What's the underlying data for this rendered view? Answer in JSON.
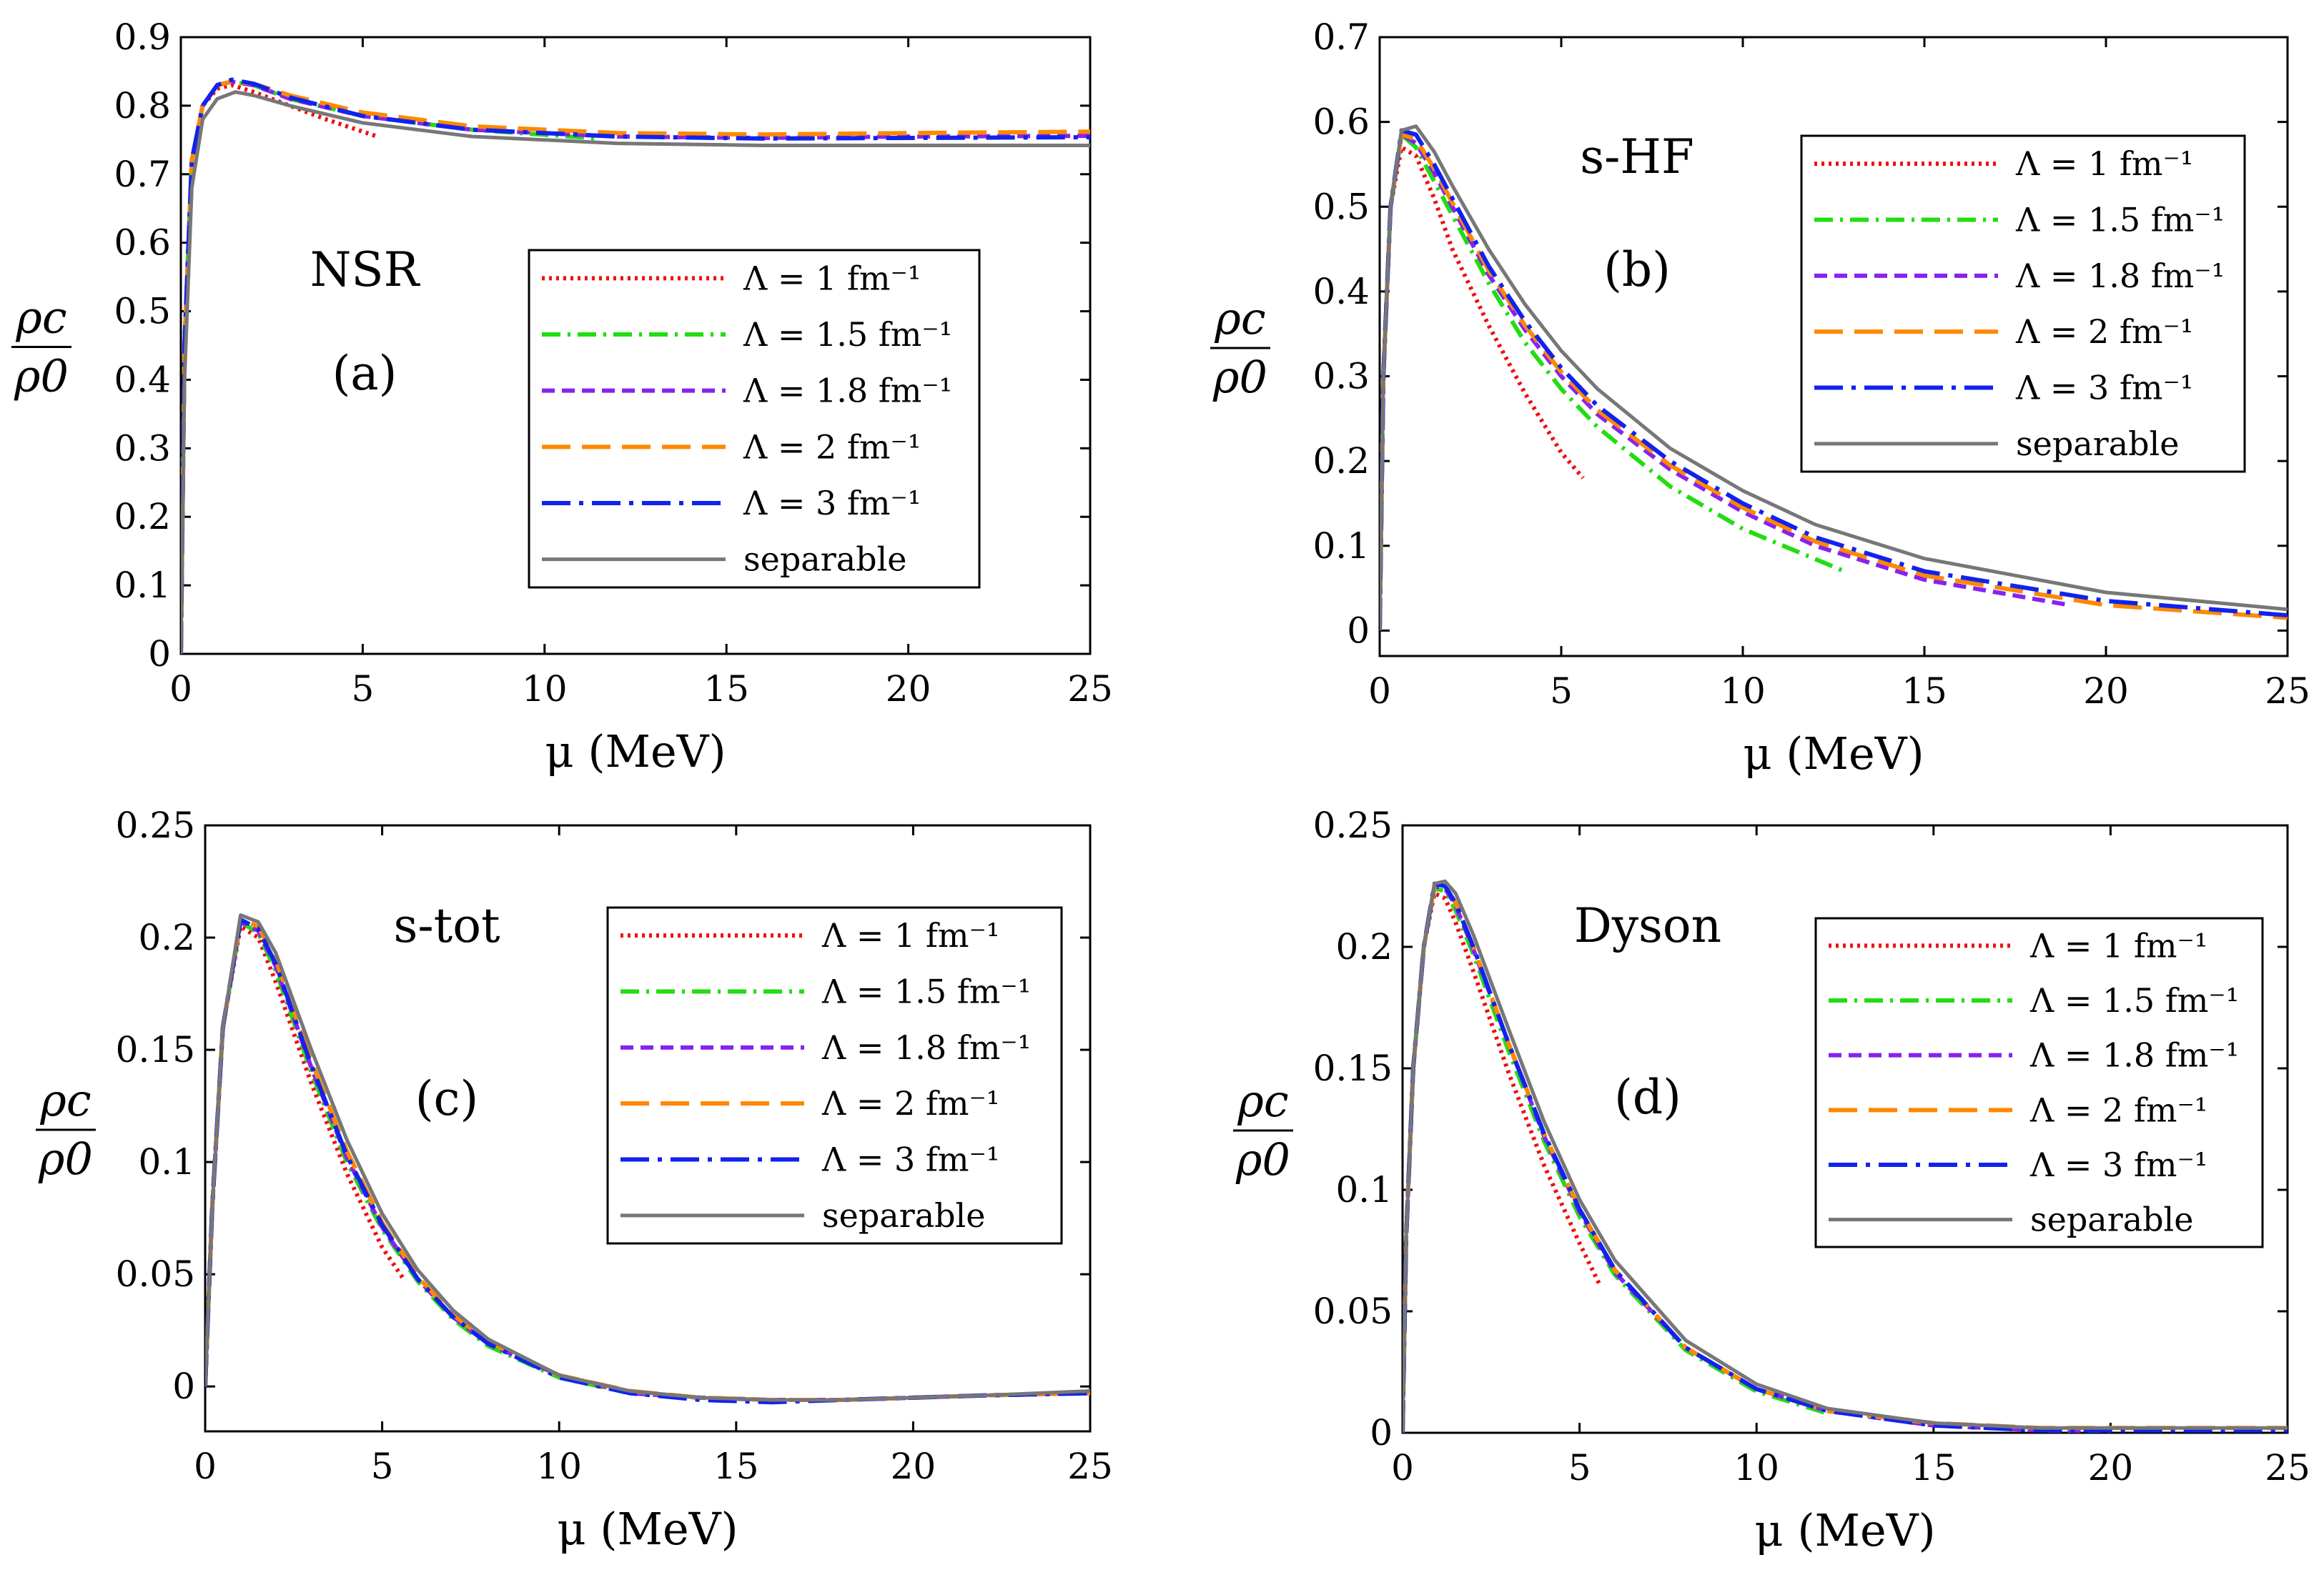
{
  "chart_data": [
    {
      "type": "line",
      "panel_label": "(a)",
      "annotation": "NSR",
      "xlabel": "μ (MeV)",
      "ylabel_num": "ρc",
      "ylabel_den": "ρ0",
      "xlim": [
        0,
        25
      ],
      "ylim": [
        0,
        0.9
      ],
      "xticks": [
        0,
        5,
        10,
        15,
        20,
        25
      ],
      "yticks": [
        0,
        0.1,
        0.2,
        0.3,
        0.4,
        0.5,
        0.6,
        0.7,
        0.8,
        0.9
      ],
      "grid": false,
      "legend_position": "center-right",
      "series": [
        {
          "name": "Λ = 1 fm⁻¹",
          "color": "#ee1111",
          "dash": "dotted",
          "x": [
            0,
            0.1,
            0.3,
            0.6,
            1.0,
            1.4,
            2.0,
            3.0,
            4.0,
            5.4
          ],
          "y": [
            0,
            0.45,
            0.72,
            0.8,
            0.825,
            0.83,
            0.82,
            0.8,
            0.78,
            0.755
          ]
        },
        {
          "name": "Λ = 1.5 fm⁻¹",
          "color": "#22dd11",
          "dash": "dashdot",
          "x": [
            0,
            0.1,
            0.3,
            0.6,
            1.0,
            1.4,
            2.0,
            3.0,
            5.0,
            8.0,
            11.5
          ],
          "y": [
            0,
            0.45,
            0.72,
            0.8,
            0.83,
            0.835,
            0.83,
            0.81,
            0.785,
            0.765,
            0.752
          ]
        },
        {
          "name": "Λ = 1.8 fm⁻¹",
          "color": "#8822ee",
          "dash": "dashed",
          "x": [
            0,
            0.1,
            0.3,
            0.6,
            1.0,
            1.4,
            2.0,
            3.0,
            5.0,
            8.0,
            12.0,
            16.0,
            20.0,
            25.0
          ],
          "y": [
            0,
            0.45,
            0.72,
            0.8,
            0.83,
            0.835,
            0.83,
            0.81,
            0.785,
            0.765,
            0.755,
            0.753,
            0.755,
            0.756
          ]
        },
        {
          "name": "Λ = 2 fm⁻¹",
          "color": "#ff8800",
          "dash": "longdash",
          "x": [
            0,
            0.1,
            0.3,
            0.6,
            1.0,
            1.4,
            2.0,
            3.0,
            5.0,
            8.0,
            12.0,
            16.0,
            20.0,
            25.0
          ],
          "y": [
            0,
            0.45,
            0.72,
            0.8,
            0.83,
            0.835,
            0.832,
            0.815,
            0.79,
            0.77,
            0.76,
            0.758,
            0.76,
            0.762
          ]
        },
        {
          "name": "Λ = 3 fm⁻¹",
          "color": "#1122ee",
          "dash": "longdashdot",
          "x": [
            0,
            0.1,
            0.3,
            0.6,
            1.0,
            1.4,
            2.0,
            3.0,
            5.0,
            8.0,
            12.0,
            16.0,
            20.0,
            25.0
          ],
          "y": [
            0,
            0.45,
            0.72,
            0.8,
            0.83,
            0.838,
            0.832,
            0.812,
            0.785,
            0.765,
            0.755,
            0.752,
            0.753,
            0.754
          ]
        },
        {
          "name": "separable",
          "color": "#777777",
          "dash": "solid",
          "x": [
            0,
            0.1,
            0.3,
            0.6,
            1.0,
            1.5,
            2.0,
            3.0,
            5.0,
            8.0,
            12.0,
            16.0,
            20.0,
            25.0
          ],
          "y": [
            0,
            0.4,
            0.68,
            0.78,
            0.81,
            0.82,
            0.815,
            0.8,
            0.775,
            0.755,
            0.745,
            0.742,
            0.742,
            0.742
          ]
        }
      ]
    },
    {
      "type": "line",
      "panel_label": "(b)",
      "annotation": "s-HF",
      "xlabel": "μ (MeV)",
      "ylabel_num": "ρc",
      "ylabel_den": "ρ0",
      "xlim": [
        0,
        25
      ],
      "ylim": [
        -0.03,
        0.7
      ],
      "xticks": [
        0,
        5,
        10,
        15,
        20,
        25
      ],
      "yticks": [
        0,
        0.1,
        0.2,
        0.3,
        0.4,
        0.5,
        0.6,
        0.7
      ],
      "grid": false,
      "legend_position": "top-right",
      "series": [
        {
          "name": "Λ = 1 fm⁻¹",
          "color": "#ee1111",
          "dash": "dotted",
          "x": [
            0,
            0.1,
            0.3,
            0.6,
            1.0,
            1.5,
            2.0,
            3.0,
            4.0,
            5.0,
            5.6
          ],
          "y": [
            0,
            0.3,
            0.5,
            0.57,
            0.56,
            0.51,
            0.45,
            0.36,
            0.28,
            0.21,
            0.18
          ]
        },
        {
          "name": "Λ = 1.5 fm⁻¹",
          "color": "#22dd11",
          "dash": "dashdot",
          "x": [
            0,
            0.1,
            0.3,
            0.6,
            1.0,
            1.5,
            2.0,
            3.0,
            4.0,
            5.0,
            6.0,
            8.0,
            10.0,
            12.8
          ],
          "y": [
            0,
            0.3,
            0.5,
            0.585,
            0.57,
            0.53,
            0.49,
            0.41,
            0.34,
            0.285,
            0.24,
            0.17,
            0.12,
            0.07
          ]
        },
        {
          "name": "Λ = 1.8 fm⁻¹",
          "color": "#8822ee",
          "dash": "dashed",
          "x": [
            0,
            0.1,
            0.3,
            0.6,
            1.0,
            1.5,
            2.0,
            3.0,
            4.0,
            5.0,
            6.0,
            8.0,
            10.0,
            12.0,
            15.0,
            19.0
          ],
          "y": [
            0,
            0.3,
            0.5,
            0.585,
            0.575,
            0.54,
            0.5,
            0.42,
            0.355,
            0.3,
            0.255,
            0.19,
            0.14,
            0.1,
            0.06,
            0.03
          ]
        },
        {
          "name": "Λ = 2 fm⁻¹",
          "color": "#ff8800",
          "dash": "longdash",
          "x": [
            0,
            0.1,
            0.3,
            0.6,
            1.0,
            1.5,
            2.0,
            3.0,
            4.0,
            5.0,
            6.0,
            8.0,
            10.0,
            12.0,
            15.0,
            20.0,
            25.0
          ],
          "y": [
            0,
            0.3,
            0.5,
            0.585,
            0.58,
            0.545,
            0.505,
            0.425,
            0.36,
            0.305,
            0.26,
            0.195,
            0.145,
            0.105,
            0.065,
            0.03,
            0.015
          ]
        },
        {
          "name": "Λ = 3 fm⁻¹",
          "color": "#1122ee",
          "dash": "longdashdot",
          "x": [
            0,
            0.1,
            0.3,
            0.6,
            1.0,
            1.5,
            2.0,
            3.0,
            4.0,
            5.0,
            6.0,
            8.0,
            10.0,
            12.0,
            15.0,
            20.0,
            25.0
          ],
          "y": [
            0,
            0.3,
            0.5,
            0.59,
            0.585,
            0.55,
            0.51,
            0.43,
            0.365,
            0.31,
            0.265,
            0.2,
            0.15,
            0.11,
            0.07,
            0.035,
            0.018
          ]
        },
        {
          "name": "separable",
          "color": "#777777",
          "dash": "solid",
          "x": [
            0,
            0.1,
            0.3,
            0.6,
            1.0,
            1.5,
            2.0,
            3.0,
            4.0,
            5.0,
            6.0,
            8.0,
            10.0,
            12.0,
            15.0,
            20.0,
            25.0
          ],
          "y": [
            0,
            0.3,
            0.5,
            0.59,
            0.595,
            0.565,
            0.525,
            0.45,
            0.385,
            0.33,
            0.285,
            0.215,
            0.165,
            0.125,
            0.085,
            0.045,
            0.025
          ]
        }
      ]
    },
    {
      "type": "line",
      "panel_label": "(c)",
      "annotation": "s-tot",
      "xlabel": "μ (MeV)",
      "ylabel_num": "ρc",
      "ylabel_den": "ρ0",
      "xlim": [
        0,
        25
      ],
      "ylim": [
        -0.02,
        0.25
      ],
      "xticks": [
        0,
        5,
        10,
        15,
        20,
        25
      ],
      "yticks": [
        0,
        0.05,
        0.1,
        0.15,
        0.2,
        0.25
      ],
      "grid": false,
      "legend_position": "top-right",
      "series": [
        {
          "name": "Λ = 1 fm⁻¹",
          "color": "#ee1111",
          "dash": "dotted",
          "x": [
            0,
            0.2,
            0.5,
            1.0,
            1.5,
            2.0,
            3.0,
            4.0,
            5.0,
            5.6
          ],
          "y": [
            0,
            0.08,
            0.16,
            0.205,
            0.2,
            0.18,
            0.135,
            0.095,
            0.062,
            0.048
          ]
        },
        {
          "name": "Λ = 1.5 fm⁻¹",
          "color": "#22dd11",
          "dash": "dashdot",
          "x": [
            0,
            0.2,
            0.5,
            1.0,
            1.5,
            2.0,
            3.0,
            4.0,
            5.0,
            6.0,
            7.0,
            8.0,
            10.0,
            12.0,
            14.0
          ],
          "y": [
            0,
            0.08,
            0.16,
            0.207,
            0.202,
            0.185,
            0.14,
            0.1,
            0.07,
            0.047,
            0.03,
            0.018,
            0.004,
            -0.003,
            -0.005
          ]
        },
        {
          "name": "Λ = 1.8 fm⁻¹",
          "color": "#8822ee",
          "dash": "dashed",
          "x": [
            0,
            0.2,
            0.5,
            1.0,
            1.5,
            2.0,
            3.0,
            4.0,
            5.0,
            6.0,
            7.0,
            8.0,
            10.0,
            12.0,
            14.0,
            16.0,
            18.0,
            20.0,
            22.0,
            25.0
          ],
          "y": [
            0,
            0.08,
            0.16,
            0.207,
            0.203,
            0.187,
            0.142,
            0.102,
            0.071,
            0.048,
            0.031,
            0.019,
            0.005,
            -0.003,
            -0.005,
            -0.006,
            -0.006,
            -0.005,
            -0.004,
            -0.003
          ]
        },
        {
          "name": "Λ = 2 fm⁻¹",
          "color": "#ff8800",
          "dash": "longdash",
          "x": [
            0,
            0.2,
            0.5,
            1.0,
            1.5,
            2.0,
            3.0,
            4.0,
            5.0,
            6.0,
            7.0,
            8.0,
            10.0,
            12.0,
            14.0,
            16.0,
            18.0,
            20.0,
            22.0,
            25.0
          ],
          "y": [
            0,
            0.08,
            0.16,
            0.208,
            0.205,
            0.19,
            0.145,
            0.105,
            0.073,
            0.049,
            0.032,
            0.02,
            0.005,
            -0.002,
            -0.005,
            -0.006,
            -0.006,
            -0.005,
            -0.004,
            -0.003
          ]
        },
        {
          "name": "Λ = 3 fm⁻¹",
          "color": "#1122ee",
          "dash": "longdashdot",
          "x": [
            0,
            0.2,
            0.5,
            1.0,
            1.5,
            2.0,
            3.0,
            4.0,
            5.0,
            6.0,
            7.0,
            8.0,
            10.0,
            12.0,
            14.0,
            16.0,
            18.0,
            20.0,
            22.0,
            25.0
          ],
          "y": [
            0,
            0.08,
            0.16,
            0.208,
            0.204,
            0.188,
            0.143,
            0.103,
            0.072,
            0.048,
            0.031,
            0.019,
            0.004,
            -0.003,
            -0.006,
            -0.007,
            -0.006,
            -0.005,
            -0.004,
            -0.003
          ]
        },
        {
          "name": "separable",
          "color": "#777777",
          "dash": "solid",
          "x": [
            0,
            0.2,
            0.5,
            1.0,
            1.5,
            2.0,
            3.0,
            4.0,
            5.0,
            6.0,
            7.0,
            8.0,
            10.0,
            12.0,
            14.0,
            16.0,
            18.0,
            20.0,
            22.0,
            25.0
          ],
          "y": [
            0,
            0.08,
            0.16,
            0.21,
            0.207,
            0.193,
            0.15,
            0.11,
            0.077,
            0.052,
            0.034,
            0.021,
            0.005,
            -0.002,
            -0.005,
            -0.006,
            -0.006,
            -0.005,
            -0.004,
            -0.002
          ]
        }
      ]
    },
    {
      "type": "line",
      "panel_label": "(d)",
      "annotation": "Dyson",
      "xlabel": "μ (MeV)",
      "ylabel_num": "ρc",
      "ylabel_den": "ρ0",
      "xlim": [
        0,
        25
      ],
      "ylim": [
        0,
        0.25
      ],
      "xticks": [
        0,
        5,
        10,
        15,
        20,
        25
      ],
      "yticks": [
        0,
        0.05,
        0.1,
        0.15,
        0.2,
        0.25
      ],
      "grid": false,
      "legend_position": "top-right",
      "series": [
        {
          "name": "Λ = 1 fm⁻¹",
          "color": "#ee1111",
          "dash": "dotted",
          "x": [
            0,
            0.1,
            0.3,
            0.6,
            0.9,
            1.2,
            1.5,
            2.0,
            3.0,
            4.0,
            5.0,
            5.6
          ],
          "y": [
            0,
            0.08,
            0.15,
            0.2,
            0.222,
            0.22,
            0.21,
            0.19,
            0.148,
            0.11,
            0.078,
            0.06
          ]
        },
        {
          "name": "Λ = 1.5 fm⁻¹",
          "color": "#22dd11",
          "dash": "dashdot",
          "x": [
            0,
            0.1,
            0.3,
            0.6,
            0.9,
            1.2,
            1.5,
            2.0,
            3.0,
            4.0,
            5.0,
            6.0,
            8.0,
            10.0,
            12.0
          ],
          "y": [
            0,
            0.08,
            0.15,
            0.2,
            0.224,
            0.223,
            0.215,
            0.197,
            0.157,
            0.12,
            0.089,
            0.065,
            0.034,
            0.017,
            0.008
          ]
        },
        {
          "name": "Λ = 1.8 fm⁻¹",
          "color": "#8822ee",
          "dash": "dashed",
          "x": [
            0,
            0.1,
            0.3,
            0.6,
            0.9,
            1.2,
            1.5,
            2.0,
            3.0,
            4.0,
            5.0,
            6.0,
            8.0,
            10.0,
            12.0,
            15.0,
            18.0,
            20.0
          ],
          "y": [
            0,
            0.08,
            0.15,
            0.2,
            0.225,
            0.224,
            0.217,
            0.199,
            0.16,
            0.122,
            0.091,
            0.066,
            0.035,
            0.018,
            0.009,
            0.003,
            0.001,
            0.0
          ]
        },
        {
          "name": "Λ = 2 fm⁻¹",
          "color": "#ff8800",
          "dash": "longdash",
          "x": [
            0,
            0.1,
            0.3,
            0.6,
            0.9,
            1.2,
            1.5,
            2.0,
            3.0,
            4.0,
            5.0,
            6.0,
            8.0,
            10.0,
            12.0,
            15.0,
            18.0,
            20.0,
            25.0
          ],
          "y": [
            0,
            0.08,
            0.15,
            0.2,
            0.225,
            0.225,
            0.218,
            0.2,
            0.16,
            0.123,
            0.092,
            0.067,
            0.035,
            0.018,
            0.009,
            0.004,
            0.002,
            0.002,
            0.002
          ]
        },
        {
          "name": "Λ = 3 fm⁻¹",
          "color": "#1122ee",
          "dash": "longdashdot",
          "x": [
            0,
            0.1,
            0.3,
            0.6,
            0.9,
            1.2,
            1.5,
            2.0,
            3.0,
            4.0,
            5.0,
            6.0,
            8.0,
            10.0,
            12.0,
            15.0,
            18.0,
            20.0,
            25.0
          ],
          "y": [
            0,
            0.08,
            0.15,
            0.2,
            0.226,
            0.225,
            0.218,
            0.2,
            0.16,
            0.123,
            0.092,
            0.067,
            0.035,
            0.018,
            0.009,
            0.003,
            0.001,
            0.001,
            0.001
          ]
        },
        {
          "name": "separable",
          "color": "#777777",
          "dash": "solid",
          "x": [
            0,
            0.1,
            0.3,
            0.6,
            0.9,
            1.2,
            1.5,
            2.0,
            3.0,
            4.0,
            5.0,
            6.0,
            8.0,
            10.0,
            12.0,
            15.0,
            18.0,
            20.0,
            25.0
          ],
          "y": [
            0,
            0.08,
            0.15,
            0.2,
            0.226,
            0.227,
            0.222,
            0.205,
            0.166,
            0.128,
            0.096,
            0.071,
            0.038,
            0.02,
            0.01,
            0.004,
            0.002,
            0.002,
            0.002
          ]
        }
      ]
    }
  ]
}
